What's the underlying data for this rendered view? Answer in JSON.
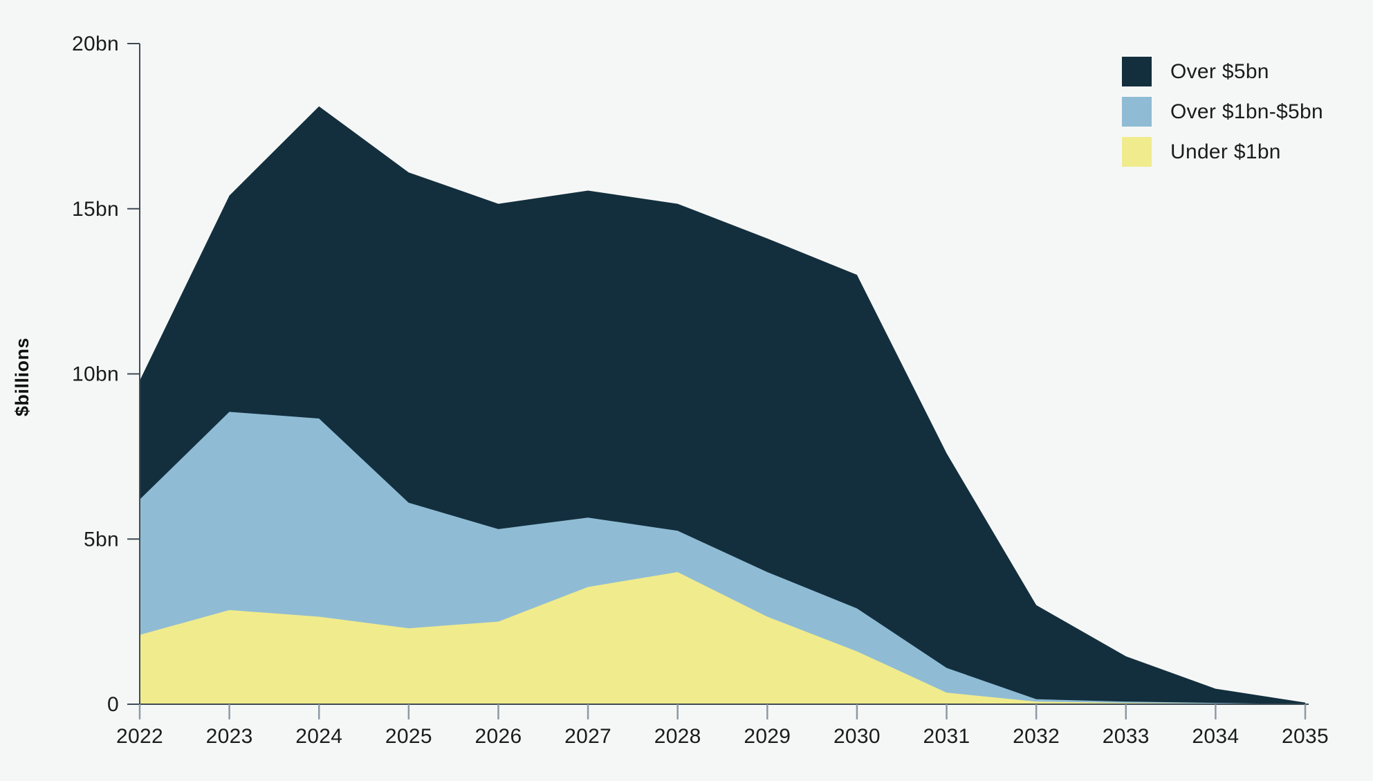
{
  "chart_data": {
    "type": "area",
    "stacked": true,
    "title": "",
    "ylabel": "$billions",
    "xlabel": "",
    "grid": false,
    "x": [
      2022,
      2023,
      2024,
      2025,
      2026,
      2027,
      2028,
      2029,
      2030,
      2031,
      2032,
      2033,
      2034,
      2035
    ],
    "series": [
      {
        "name": "Under $1bn",
        "color": "#F0EB8D",
        "values": [
          2.1,
          2.85,
          2.65,
          2.3,
          2.5,
          3.55,
          4.0,
          2.65,
          1.6,
          0.35,
          0.08,
          0.04,
          0.02,
          0.0
        ]
      },
      {
        "name": "Over $1bn-$5bn",
        "color": "#8FBCD4",
        "values": [
          4.1,
          6.0,
          6.0,
          3.8,
          2.8,
          2.1,
          1.25,
          1.35,
          1.3,
          0.75,
          0.07,
          0.04,
          0.02,
          0.0
        ]
      },
      {
        "name": "Over $5bn",
        "color": "#132F3E",
        "values": [
          3.6,
          6.55,
          9.45,
          10.0,
          9.85,
          9.9,
          9.9,
          10.1,
          10.1,
          6.5,
          2.85,
          1.37,
          0.43,
          0.05
        ]
      }
    ],
    "stacked_totals": [
      9.8,
      15.4,
      18.1,
      16.1,
      15.15,
      15.55,
      15.15,
      14.1,
      13.0,
      7.6,
      3.0,
      1.45,
      0.47,
      0.05
    ],
    "y_axis": {
      "min": 0,
      "max": 20,
      "tick_step": 5,
      "tick_labels": [
        "0",
        "5bn",
        "10bn",
        "15bn",
        "20bn"
      ]
    },
    "legend": {
      "position": "top-right",
      "order_top_to_bottom": [
        "Over $5bn",
        "Over $1bn-$5bn",
        "Under $1bn"
      ]
    }
  },
  "colors": {
    "background": "#F5F7F6",
    "axis_line": "#3D4A54",
    "tick_mark": "#8E99A6",
    "label_text": "#1B1B1B"
  }
}
